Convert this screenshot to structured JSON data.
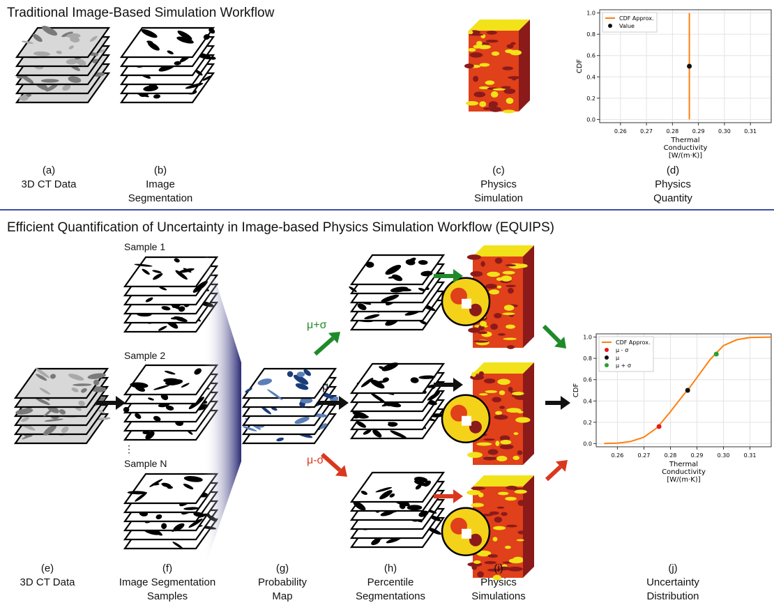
{
  "top": {
    "title": "Traditional Image-Based Simulation Workflow",
    "captions": [
      {
        "letter": "(a)",
        "lines": [
          "3D CT Data"
        ]
      },
      {
        "letter": "(b)",
        "lines": [
          "Image",
          "Segmentation"
        ]
      },
      {
        "letter": "(c)",
        "lines": [
          "Physics",
          "Simulation"
        ]
      },
      {
        "letter": "(d)",
        "lines": [
          "Physics",
          "Quantity"
        ]
      }
    ]
  },
  "bottom": {
    "title": "Efficient Quantification of Uncertainty in Image-based Physics Simulation Workflow (EQUIPS)",
    "sample_labels": [
      "Sample 1",
      "Sample 2",
      "⋮",
      "Sample N"
    ],
    "branch_labels": {
      "plus": "μ+σ",
      "mean": "μ",
      "minus": "μ-σ"
    },
    "captions": [
      {
        "letter": "(e)",
        "lines": [
          "3D CT Data"
        ]
      },
      {
        "letter": "(f)",
        "lines": [
          "Image Segmentation",
          "Samples"
        ]
      },
      {
        "letter": "(g)",
        "lines": [
          "Probability",
          "Map"
        ]
      },
      {
        "letter": "(h)",
        "lines": [
          "Percentile",
          "Segmentations"
        ]
      },
      {
        "letter": "(i)",
        "lines": [
          "Physics",
          "Simulations"
        ]
      },
      {
        "letter": "(j)",
        "lines": [
          "Uncertainty",
          "Distribution"
        ]
      }
    ]
  },
  "colors": {
    "divider": "#3b4fa3",
    "plus_arrow": "#1f8a2a",
    "mean_arrow": "#111111",
    "minus_arrow": "#d9381e",
    "cdf_line": "#ff7f0e",
    "prob_map": "#1a3d7a",
    "heat_dark": "#8b1a1a",
    "heat_mid": "#e0401a",
    "heat_light": "#f2e21a"
  },
  "chart_data": [
    {
      "type": "line",
      "xlabel": "Thermal\nConductivity\n[W/(m·K)]",
      "ylabel": "CDF",
      "xlim": [
        0.252,
        0.318
      ],
      "ylim": [
        -0.03,
        1.03
      ],
      "xticks": [
        0.26,
        0.27,
        0.28,
        0.29,
        0.3,
        0.31
      ],
      "xtick_labels": [
        "0.26",
        "0.27",
        "0.28",
        "0.29",
        "0.30",
        "0.31"
      ],
      "yticks": [
        0.0,
        0.2,
        0.4,
        0.6,
        0.8,
        1.0
      ],
      "ytick_labels": [
        "0.0",
        "0.2",
        "0.4",
        "0.6",
        "0.8",
        "1.0"
      ],
      "grid": true,
      "legend_position": "top-left",
      "series": [
        {
          "name": "CDF Approx.",
          "kind": "line",
          "color": "#ff7f0e",
          "x": [
            0.2865,
            0.2865
          ],
          "y": [
            0.0,
            1.0
          ]
        },
        {
          "name": "Value",
          "kind": "point",
          "color": "#111111",
          "x": [
            0.2865
          ],
          "y": [
            0.5
          ]
        }
      ]
    },
    {
      "type": "line",
      "xlabel": "Thermal\nConductivity\n[W/(m·K)]",
      "ylabel": "CDF",
      "xlim": [
        0.252,
        0.318
      ],
      "ylim": [
        -0.03,
        1.03
      ],
      "xticks": [
        0.26,
        0.27,
        0.28,
        0.29,
        0.3,
        0.31
      ],
      "xtick_labels": [
        "0.26",
        "0.27",
        "0.28",
        "0.29",
        "0.30",
        "0.31"
      ],
      "yticks": [
        0.0,
        0.2,
        0.4,
        0.6,
        0.8,
        1.0
      ],
      "ytick_labels": [
        "0.0",
        "0.2",
        "0.4",
        "0.6",
        "0.8",
        "1.0"
      ],
      "grid": true,
      "legend_position": "top-left",
      "series": [
        {
          "name": "CDF Approx.",
          "kind": "line",
          "color": "#ff7f0e",
          "x": [
            0.255,
            0.26,
            0.265,
            0.27,
            0.275,
            0.28,
            0.285,
            0.2865,
            0.29,
            0.295,
            0.3,
            0.305,
            0.31,
            0.318
          ],
          "y": [
            0.001,
            0.004,
            0.02,
            0.06,
            0.15,
            0.3,
            0.46,
            0.5,
            0.62,
            0.79,
            0.92,
            0.975,
            0.995,
            1.0
          ]
        },
        {
          "name": "μ - σ",
          "kind": "point",
          "color": "#e41a1c",
          "x": [
            0.2757
          ],
          "y": [
            0.16
          ]
        },
        {
          "name": "μ",
          "kind": "point",
          "color": "#111111",
          "x": [
            0.2865
          ],
          "y": [
            0.5
          ]
        },
        {
          "name": "μ + σ",
          "kind": "point",
          "color": "#2ca02c",
          "x": [
            0.2973
          ],
          "y": [
            0.84
          ]
        }
      ]
    }
  ]
}
